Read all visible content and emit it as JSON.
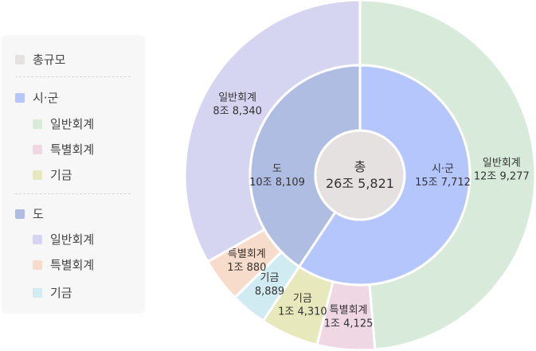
{
  "legend": {
    "groups": [
      {
        "label": "총규모",
        "color": "#e6e1e1",
        "items": []
      },
      {
        "label": "시·군",
        "color": "#b4c6fb",
        "items": [
          {
            "label": "일반회계",
            "color": "#d8ebdb"
          },
          {
            "label": "특별회계",
            "color": "#efd7e4"
          },
          {
            "label": "기금",
            "color": "#e8e8bd"
          }
        ]
      },
      {
        "label": "도",
        "color": "#b0bde2",
        "items": [
          {
            "label": "일반회계",
            "color": "#d6d5f1"
          },
          {
            "label": "특별회계",
            "color": "#f8dccb"
          },
          {
            "label": "기금",
            "color": "#d0ebf2"
          }
        ]
      }
    ]
  },
  "chart_data": {
    "type": "pie",
    "subtype": "nested-donut",
    "unit": "억원",
    "center": {
      "label": "총",
      "value": 265821,
      "value_text": "26조 5,821",
      "color": "#e6e1e1"
    },
    "inner_ring": [
      {
        "name": "시·군",
        "value": 157712,
        "value_text": "15조 7,712",
        "color": "#b4c6fb"
      },
      {
        "name": "도",
        "value": 108109,
        "value_text": "10조 8,109",
        "color": "#b0bde2"
      }
    ],
    "outer_ring": [
      {
        "parent": "시·군",
        "name": "일반회계",
        "value": 129277,
        "value_text": "12조 9,277",
        "color": "#d8ebdb"
      },
      {
        "parent": "시·군",
        "name": "특별회계",
        "value": 14125,
        "value_text": "1조 4,125",
        "color": "#efd7e4"
      },
      {
        "parent": "시·군",
        "name": "기금",
        "value": 14310,
        "value_text": "1조 4,310",
        "color": "#e8e8bd"
      },
      {
        "parent": "도",
        "name": "기금",
        "value": 8889,
        "value_text": "8,889",
        "color": "#d0ebf2"
      },
      {
        "parent": "도",
        "name": "특별회계",
        "value": 10880,
        "value_text": "1조 880",
        "color": "#f8dccb"
      },
      {
        "parent": "도",
        "name": "일반회계",
        "value": 88340,
        "value_text": "8조 8,340",
        "color": "#d6d5f1"
      }
    ]
  }
}
